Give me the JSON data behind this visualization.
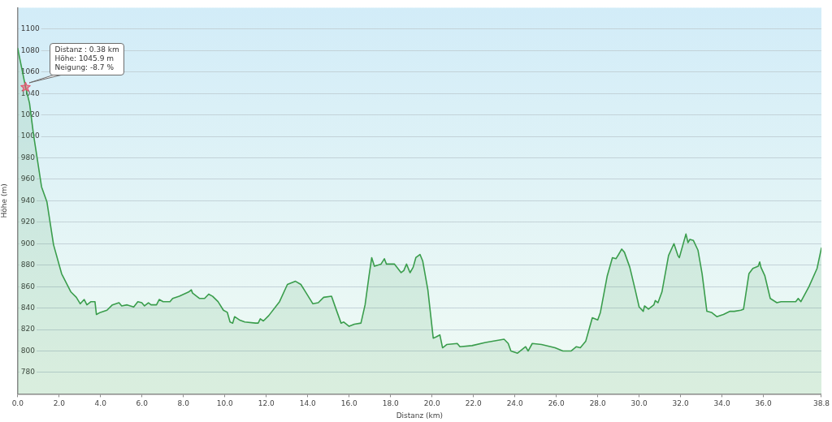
{
  "chart_data": {
    "type": "area",
    "xlabel": "Distanz (km)",
    "ylabel": "Höhe (m)",
    "xlim": [
      0,
      38.8
    ],
    "ylim": [
      760,
      1120
    ],
    "xticks": [
      {
        "value": 0,
        "label": "0.0"
      },
      {
        "value": 2,
        "label": "2.0"
      },
      {
        "value": 4,
        "label": "4.0"
      },
      {
        "value": 6,
        "label": "6.0"
      },
      {
        "value": 8,
        "label": "8.0"
      },
      {
        "value": 10,
        "label": "10.0"
      },
      {
        "value": 12,
        "label": "12.0"
      },
      {
        "value": 14,
        "label": "14.0"
      },
      {
        "value": 16,
        "label": "16.0"
      },
      {
        "value": 18,
        "label": "18.0"
      },
      {
        "value": 20,
        "label": "20.0"
      },
      {
        "value": 22,
        "label": "22.0"
      },
      {
        "value": 24,
        "label": "24.0"
      },
      {
        "value": 26,
        "label": "26.0"
      },
      {
        "value": 28,
        "label": "28.0"
      },
      {
        "value": 30,
        "label": "30.0"
      },
      {
        "value": 32,
        "label": "32.0"
      },
      {
        "value": 34,
        "label": "34.0"
      },
      {
        "value": 36,
        "label": "36.0"
      },
      {
        "value": 38.8,
        "label": "38.8"
      }
    ],
    "yticks": [
      780,
      800,
      820,
      840,
      860,
      880,
      900,
      920,
      940,
      960,
      980,
      1000,
      1020,
      1040,
      1060,
      1080,
      1100
    ],
    "grid": "y",
    "series": [
      {
        "color": "#3a9d4c",
        "x": [
          0,
          0.38,
          0.57,
          0.76,
          0.96,
          1.15,
          1.41,
          1.73,
          2.12,
          2.57,
          2.83,
          3.02,
          3.21,
          3.34,
          3.54,
          3.73,
          3.8,
          3.99,
          4.31,
          4.57,
          4.89,
          5.02,
          5.28,
          5.6,
          5.8,
          5.99,
          6.12,
          6.31,
          6.44,
          6.7,
          6.83,
          7.02,
          7.35,
          7.48,
          7.8,
          8.25,
          8.38,
          8.44,
          8.77,
          9.02,
          9.22,
          9.41,
          9.67,
          9.93,
          10.12,
          10.25,
          10.38,
          10.47,
          10.7,
          10.96,
          11.48,
          11.61,
          11.71,
          11.86,
          12.12,
          12.64,
          13.02,
          13.41,
          13.67,
          13.93,
          14.25,
          14.51,
          14.77,
          15.15,
          15.35,
          15.61,
          15.74,
          16.0,
          16.25,
          16.57,
          16.77,
          16.96,
          17.09,
          17.22,
          17.54,
          17.7,
          17.8,
          18.19,
          18.51,
          18.64,
          18.77,
          18.94,
          19.09,
          19.22,
          19.42,
          19.55,
          19.8,
          20.06,
          20.19,
          20.38,
          20.51,
          20.71,
          21.22,
          21.35,
          21.93,
          22.58,
          23.48,
          23.68,
          23.81,
          24.13,
          24.52,
          24.64,
          24.84,
          25.29,
          25.94,
          26.32,
          26.71,
          26.97,
          27.16,
          27.42,
          27.74,
          28.0,
          28.13,
          28.46,
          28.71,
          28.88,
          29.01,
          29.16,
          29.29,
          29.55,
          29.81,
          30.0,
          30.2,
          30.26,
          30.45,
          30.71,
          30.78,
          30.91,
          31.1,
          31.42,
          31.68,
          31.87,
          31.94,
          32.26,
          32.36,
          32.45,
          32.62,
          32.84,
          33.04,
          33.27,
          33.49,
          33.75,
          34.07,
          34.39,
          34.59,
          34.91,
          35.04,
          35.3,
          35.49,
          35.75,
          35.82,
          35.88,
          36.07,
          36.33,
          36.65,
          36.85,
          37.56,
          37.68,
          37.81,
          38.2,
          38.59,
          38.8
        ],
        "values": [
          1082,
          1045.9,
          1031,
          1002,
          977,
          953,
          939,
          899,
          872,
          855,
          850,
          844,
          848,
          843,
          846,
          846,
          834,
          836,
          838,
          843,
          845,
          842,
          843,
          841,
          846,
          845,
          842,
          845,
          843,
          843,
          848,
          846,
          846,
          849,
          851,
          855,
          857,
          854,
          849,
          849,
          853,
          851,
          846,
          838,
          836,
          827,
          826,
          832,
          829,
          827,
          826,
          826,
          830,
          828,
          833,
          846,
          862,
          865,
          862,
          854,
          844,
          845,
          850,
          851,
          840,
          826,
          827,
          823,
          825,
          826,
          843,
          870,
          887,
          879,
          881,
          886,
          881,
          881,
          873,
          875,
          881,
          873,
          878,
          887,
          890,
          884,
          857,
          812,
          813,
          815,
          803,
          806,
          807,
          804,
          805,
          808,
          811,
          807,
          800,
          798,
          804,
          800,
          807,
          806,
          803,
          800,
          800,
          804,
          803,
          809,
          831,
          829,
          836,
          870,
          887,
          886,
          890,
          895,
          892,
          878,
          857,
          841,
          837,
          842,
          839,
          843,
          847,
          845,
          855,
          889,
          900,
          889,
          887,
          909,
          901,
          904,
          903,
          894,
          872,
          837,
          836,
          832,
          834,
          837,
          837,
          838,
          839,
          872,
          877,
          879,
          883,
          878,
          870,
          849,
          845,
          846,
          846,
          849,
          846,
          860,
          877,
          896
        ]
      },
      {
        "type": "scatter",
        "color": "#e5566e",
        "marker": "star",
        "x": [
          0.38
        ],
        "values": [
          1045.9
        ]
      }
    ],
    "annotations": [
      "Distanz : 0.38 km\nHöhe: 1045.9 m\nNeigung: -8.7 %"
    ]
  }
}
